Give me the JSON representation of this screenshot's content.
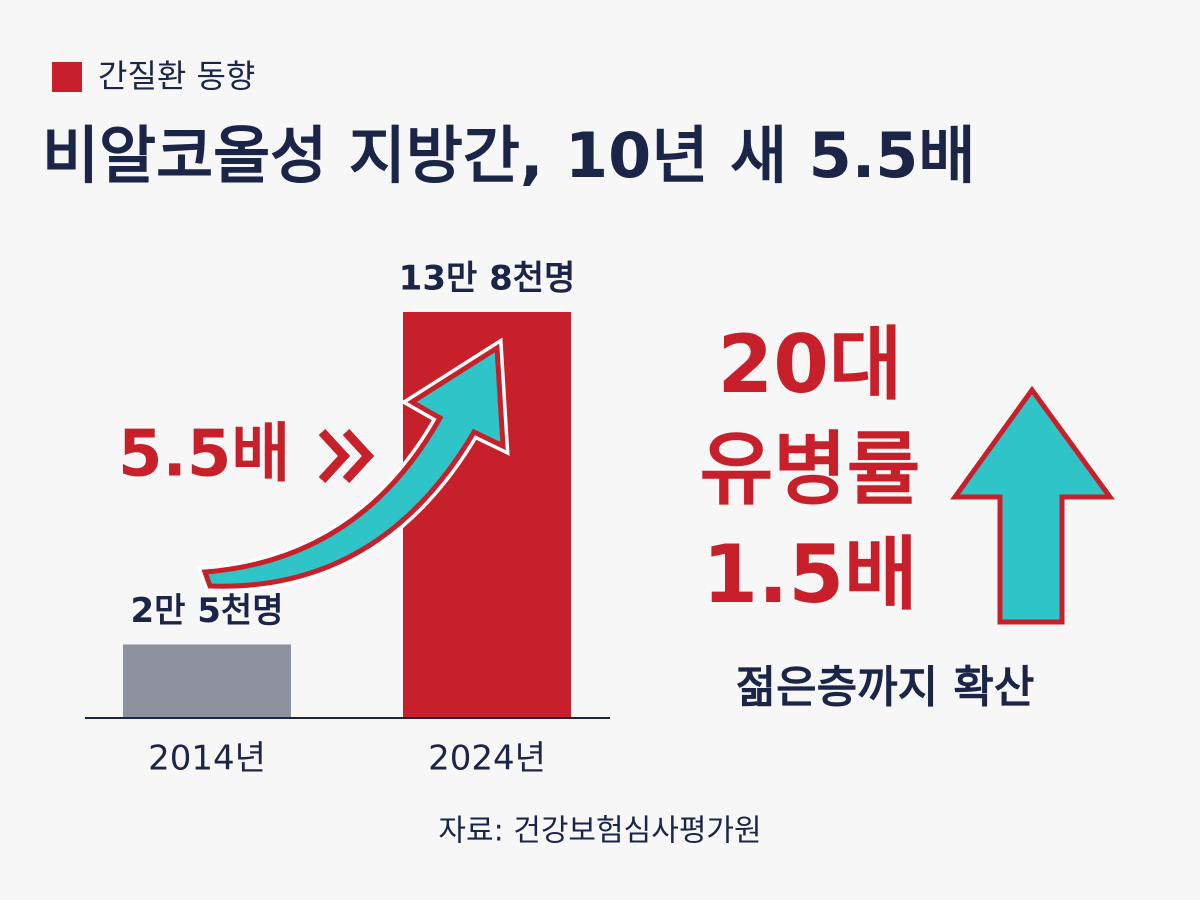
{
  "chart_data": {
    "type": "bar",
    "label": "간질환 동향",
    "title": "비알코올성 지방간, 10년 새 5.5배",
    "categories": [
      "2014년",
      "2024년"
    ],
    "values": [
      25000,
      138000
    ],
    "value_labels": [
      "2만 5천명",
      "13만 8천명"
    ],
    "colors": [
      "#8e929e",
      "#c8202a"
    ],
    "annotation": "5.5배",
    "side_note": {
      "lines": [
        "20대",
        "유병률",
        "1.5배"
      ],
      "caption": "젊은층까지 확산"
    },
    "source": "자료: 건강보험심사평가원"
  }
}
